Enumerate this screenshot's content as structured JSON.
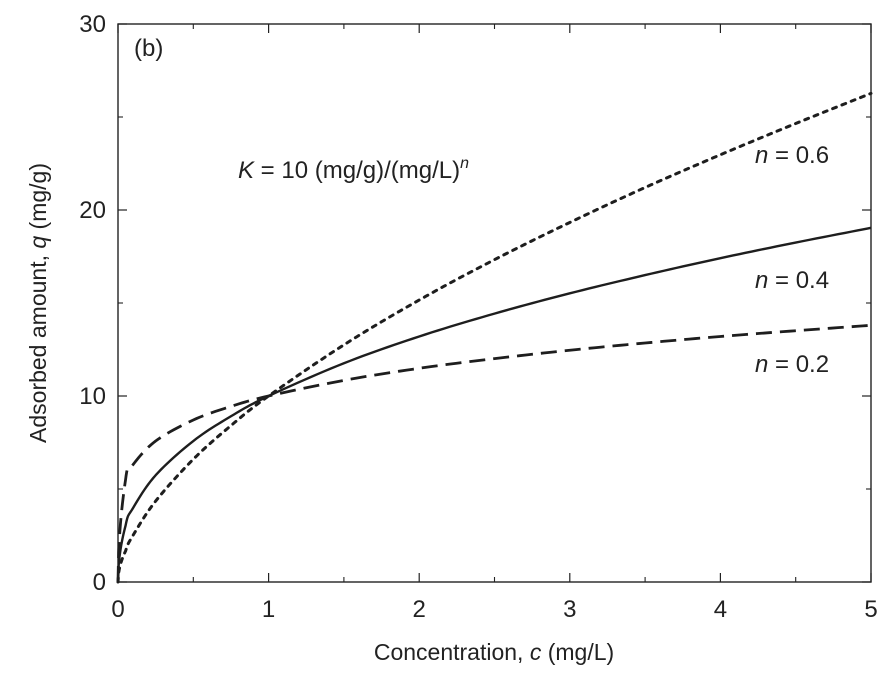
{
  "chart_data": {
    "type": "line",
    "panel_label": "(b)",
    "xlabel": {
      "text": "Concentration, ",
      "var": "c",
      "unit": " (mg/L)"
    },
    "ylabel": {
      "text": "Adsorbed amount, ",
      "var": "q",
      "unit": " (mg/g)"
    },
    "xlim": [
      0,
      5
    ],
    "ylim": [
      0,
      30
    ],
    "x_ticks": [
      0,
      1,
      2,
      3,
      4,
      5
    ],
    "y_ticks": [
      0,
      10,
      20,
      30
    ],
    "grid": false,
    "equation_annotation": {
      "var": "K",
      "text": " = 10 (mg/g)/(mg/L)",
      "sup": "n"
    },
    "series": [
      {
        "name": "n = 0.6",
        "var": "n",
        "eq": " = 0.6",
        "line_style": "dotted",
        "x": [
          0,
          0.05,
          0.1,
          0.25,
          0.5,
          0.75,
          1,
          1.5,
          2,
          2.5,
          3,
          3.5,
          4,
          4.5,
          5
        ],
        "y": [
          0,
          1.66,
          2.51,
          4.35,
          6.6,
          8.41,
          10.0,
          12.75,
          15.16,
          17.33,
          19.33,
          21.21,
          22.97,
          24.65,
          26.27
        ]
      },
      {
        "name": "n = 0.4",
        "var": "n",
        "eq": " = 0.4",
        "line_style": "solid",
        "x": [
          0,
          0.05,
          0.1,
          0.25,
          0.5,
          0.75,
          1,
          1.5,
          2,
          2.5,
          3,
          3.5,
          4,
          4.5,
          5
        ],
        "y": [
          0,
          3.02,
          3.98,
          5.74,
          7.58,
          8.91,
          10.0,
          11.76,
          13.2,
          14.43,
          15.52,
          16.5,
          17.41,
          18.25,
          19.04
        ]
      },
      {
        "name": "n = 0.2",
        "var": "n",
        "eq": " = 0.2",
        "line_style": "dashed",
        "x": [
          0,
          0.05,
          0.1,
          0.25,
          0.5,
          0.75,
          1,
          1.5,
          2,
          2.5,
          3,
          3.5,
          4,
          4.5,
          5
        ],
        "y": [
          0,
          5.49,
          6.31,
          7.58,
          8.71,
          9.44,
          10.0,
          10.84,
          11.49,
          12.01,
          12.46,
          12.85,
          13.2,
          13.51,
          13.8
        ]
      }
    ]
  }
}
